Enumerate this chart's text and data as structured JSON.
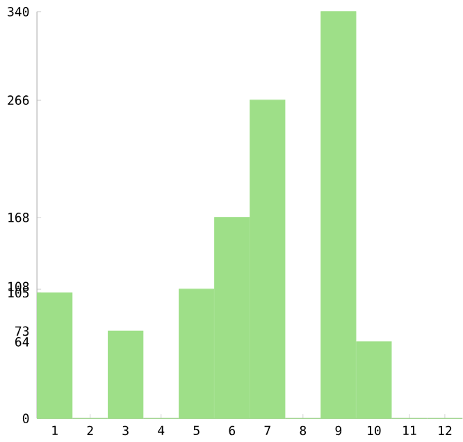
{
  "chart_data": {
    "type": "bar",
    "categories": [
      "1",
      "2",
      "3",
      "4",
      "5",
      "6",
      "7",
      "8",
      "9",
      "10",
      "11",
      "12"
    ],
    "values": [
      105,
      0,
      73,
      0,
      108,
      168,
      266,
      0,
      340,
      64,
      0,
      0
    ],
    "color": "#9edf88",
    "ylim": [
      0,
      340
    ],
    "yticks": [
      0,
      64,
      73,
      105,
      108,
      168,
      266,
      340
    ],
    "grid": false
  }
}
